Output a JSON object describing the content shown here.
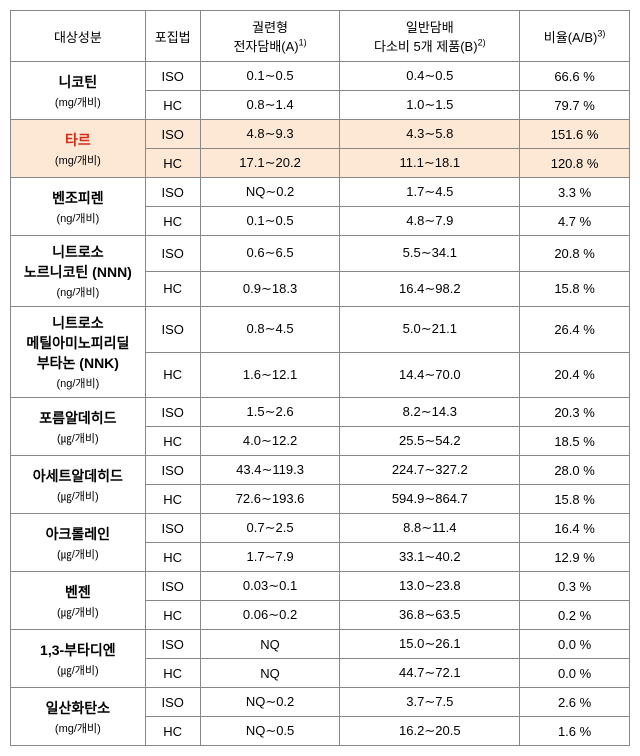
{
  "headers": {
    "component": "대상성분",
    "method": "포집법",
    "colA_line1": "궐련형",
    "colA_line2": "전자담배(A)",
    "colA_sup": "1)",
    "colB_line1": "일반담배",
    "colB_line2": "다소비 5개 제품(B)",
    "colB_sup": "2)",
    "ratio": "비율(A/B)",
    "ratio_sup": "3)"
  },
  "rows": [
    {
      "label": "니코틴",
      "unit": "(mg/개비)",
      "method": "ISO",
      "a": "0.1∼0.5",
      "b": "0.4∼0.5",
      "ratio": "66.6 %",
      "hl": false
    },
    {
      "method": "HC",
      "a": "0.8∼1.4",
      "b": "1.0∼1.5",
      "ratio": "79.7 %",
      "hl": false
    },
    {
      "label": "타르",
      "unit": "(mg/개비)",
      "method": "ISO",
      "a": "4.8∼9.3",
      "b": "4.3∼5.8",
      "ratio": "151.6 %",
      "hl": true,
      "hlLabel": true
    },
    {
      "method": "HC",
      "a": "17.1∼20.2",
      "b": "11.1∼18.1",
      "ratio": "120.8 %",
      "hl": true
    },
    {
      "label": "벤조피렌",
      "unit": "(ng/개비)",
      "method": "ISO",
      "a": "NQ∼0.2",
      "b": "1.7∼4.5",
      "ratio": "3.3 %",
      "hl": false
    },
    {
      "method": "HC",
      "a": "0.1∼0.5",
      "b": "4.8∼7.9",
      "ratio": "4.7 %",
      "hl": false
    },
    {
      "label": "니트로소\n노르니코틴 (NNN)",
      "unit": "(ng/개비)",
      "method": "ISO",
      "a": "0.6∼6.5",
      "b": "5.5∼34.1",
      "ratio": "20.8 %",
      "hl": false
    },
    {
      "method": "HC",
      "a": "0.9∼18.3",
      "b": "16.4∼98.2",
      "ratio": "15.8 %",
      "hl": false
    },
    {
      "label": "니트로소\n메틸아미노피리딜\n부타논 (NNK)",
      "unit": "(ng/개비)",
      "method": "ISO",
      "a": "0.8∼4.5",
      "b": "5.0∼21.1",
      "ratio": "26.4 %",
      "hl": false
    },
    {
      "method": "HC",
      "a": "1.6∼12.1",
      "b": "14.4∼70.0",
      "ratio": "20.4 %",
      "hl": false
    },
    {
      "label": "포름알데히드",
      "unit": "(㎍/개비)",
      "method": "ISO",
      "a": "1.5∼2.6",
      "b": "8.2∼14.3",
      "ratio": "20.3 %",
      "hl": false
    },
    {
      "method": "HC",
      "a": "4.0∼12.2",
      "b": "25.5∼54.2",
      "ratio": "18.5 %",
      "hl": false
    },
    {
      "label": "아세트알데히드",
      "unit": "(㎍/개비)",
      "method": "ISO",
      "a": "43.4∼119.3",
      "b": "224.7∼327.2",
      "ratio": "28.0 %",
      "hl": false
    },
    {
      "method": "HC",
      "a": "72.6∼193.6",
      "b": "594.9∼864.7",
      "ratio": "15.8 %",
      "hl": false
    },
    {
      "label": "아크롤레인",
      "unit": "(㎍/개비)",
      "method": "ISO",
      "a": "0.7∼2.5",
      "b": "8.8∼11.4",
      "ratio": "16.4 %",
      "hl": false
    },
    {
      "method": "HC",
      "a": "1.7∼7.9",
      "b": "33.1∼40.2",
      "ratio": "12.9 %",
      "hl": false
    },
    {
      "label": "벤젠",
      "unit": "(㎍/개비)",
      "method": "ISO",
      "a": "0.03∼0.1",
      "b": "13.0∼23.8",
      "ratio": "0.3 %",
      "hl": false
    },
    {
      "method": "HC",
      "a": "0.06∼0.2",
      "b": "36.8∼63.5",
      "ratio": "0.2 %",
      "hl": false
    },
    {
      "label": "1,3-부타디엔",
      "unit": "(㎍/개비)",
      "method": "ISO",
      "a": "NQ",
      "b": "15.0∼26.1",
      "ratio": "0.0 %",
      "hl": false
    },
    {
      "method": "HC",
      "a": "NQ",
      "b": "44.7∼72.1",
      "ratio": "0.0 %",
      "hl": false
    },
    {
      "label": "일산화탄소",
      "unit": "(mg/개비)",
      "method": "ISO",
      "a": "NQ∼0.2",
      "b": "3.7∼7.5",
      "ratio": "2.6 %",
      "hl": false
    },
    {
      "method": "HC",
      "a": "NQ∼0.5",
      "b": "16.2∼20.5",
      "ratio": "1.6 %",
      "hl": false
    }
  ]
}
